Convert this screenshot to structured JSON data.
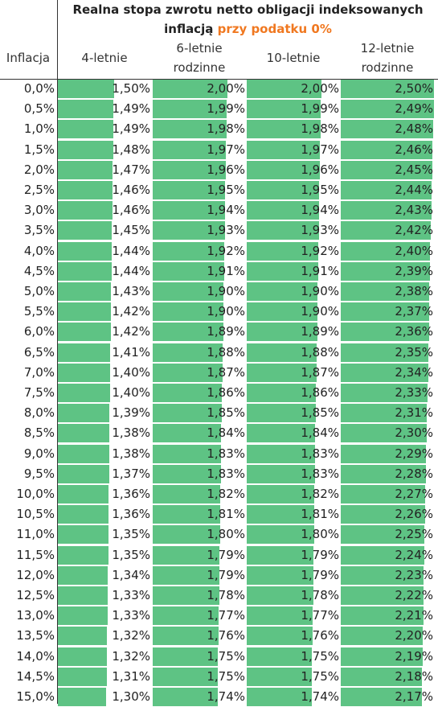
{
  "title": {
    "line1": "Realna stopa zwrotu netto obligacji indeksowanych",
    "line2_prefix": "inflacją",
    "line2_accent": "przy podatku 0%"
  },
  "headers": {
    "inflation": "Inflacja",
    "c1": "4-letnie",
    "c2_line1": "6-letnie",
    "c2_line2": "rodzinne",
    "c3": "10-letnie",
    "c4_line1": "12-letnie",
    "c4_line2": "rodzinne"
  },
  "colors": {
    "bar": "#5ec384",
    "accent": "#f07820"
  },
  "chart_data": {
    "type": "table",
    "columns": [
      "Inflacja",
      "4-letnie",
      "6-letnie rodzinne",
      "10-letnie",
      "12-letnie rodzinne"
    ],
    "rows": [
      [
        "0,0%",
        "1,50%",
        "2,00%",
        "2,00%",
        "2,50%"
      ],
      [
        "0,5%",
        "1,49%",
        "1,99%",
        "1,99%",
        "2,49%"
      ],
      [
        "1,0%",
        "1,49%",
        "1,98%",
        "1,98%",
        "2,48%"
      ],
      [
        "1,5%",
        "1,48%",
        "1,97%",
        "1,97%",
        "2,46%"
      ],
      [
        "2,0%",
        "1,47%",
        "1,96%",
        "1,96%",
        "2,45%"
      ],
      [
        "2,5%",
        "1,46%",
        "1,95%",
        "1,95%",
        "2,44%"
      ],
      [
        "3,0%",
        "1,46%",
        "1,94%",
        "1,94%",
        "2,43%"
      ],
      [
        "3,5%",
        "1,45%",
        "1,93%",
        "1,93%",
        "2,42%"
      ],
      [
        "4,0%",
        "1,44%",
        "1,92%",
        "1,92%",
        "2,40%"
      ],
      [
        "4,5%",
        "1,44%",
        "1,91%",
        "1,91%",
        "2,39%"
      ],
      [
        "5,0%",
        "1,43%",
        "1,90%",
        "1,90%",
        "2,38%"
      ],
      [
        "5,5%",
        "1,42%",
        "1,90%",
        "1,90%",
        "2,37%"
      ],
      [
        "6,0%",
        "1,42%",
        "1,89%",
        "1,89%",
        "2,36%"
      ],
      [
        "6,5%",
        "1,41%",
        "1,88%",
        "1,88%",
        "2,35%"
      ],
      [
        "7,0%",
        "1,40%",
        "1,87%",
        "1,87%",
        "2,34%"
      ],
      [
        "7,5%",
        "1,40%",
        "1,86%",
        "1,86%",
        "2,33%"
      ],
      [
        "8,0%",
        "1,39%",
        "1,85%",
        "1,85%",
        "2,31%"
      ],
      [
        "8,5%",
        "1,38%",
        "1,84%",
        "1,84%",
        "2,30%"
      ],
      [
        "9,0%",
        "1,38%",
        "1,83%",
        "1,83%",
        "2,29%"
      ],
      [
        "9,5%",
        "1,37%",
        "1,83%",
        "1,83%",
        "2,28%"
      ],
      [
        "10,0%",
        "1,36%",
        "1,82%",
        "1,82%",
        "2,27%"
      ],
      [
        "10,5%",
        "1,36%",
        "1,81%",
        "1,81%",
        "2,26%"
      ],
      [
        "11,0%",
        "1,35%",
        "1,80%",
        "1,80%",
        "2,25%"
      ],
      [
        "11,5%",
        "1,35%",
        "1,79%",
        "1,79%",
        "2,24%"
      ],
      [
        "12,0%",
        "1,34%",
        "1,79%",
        "1,79%",
        "2,23%"
      ],
      [
        "12,5%",
        "1,33%",
        "1,78%",
        "1,78%",
        "2,22%"
      ],
      [
        "13,0%",
        "1,33%",
        "1,77%",
        "1,77%",
        "2,21%"
      ],
      [
        "13,5%",
        "1,32%",
        "1,76%",
        "1,76%",
        "2,20%"
      ],
      [
        "14,0%",
        "1,32%",
        "1,75%",
        "1,75%",
        "2,19%"
      ],
      [
        "14,5%",
        "1,31%",
        "1,75%",
        "1,75%",
        "2,18%"
      ],
      [
        "15,0%",
        "1,30%",
        "1,74%",
        "1,74%",
        "2,17%"
      ]
    ],
    "bar_scale_max": 2.5
  }
}
